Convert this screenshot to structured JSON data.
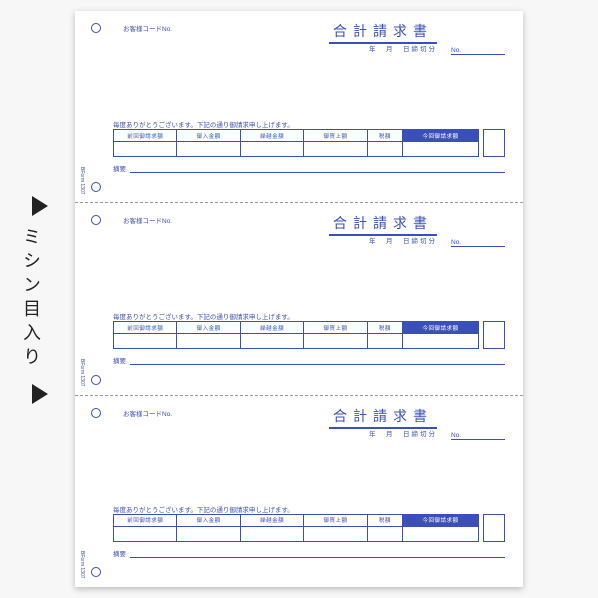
{
  "side_label": "ミシン目入り",
  "slip": {
    "code_label": "お客様コードNo.",
    "title": "合計請求書",
    "date_line": "年　月　日締切分",
    "no_label": "No.",
    "desc": "毎度ありがとうございます。下記の通り御請求申し上げます。",
    "note_label": "摘要",
    "form_no": "BForm 1307",
    "columns": [
      {
        "label": "前回御請求額",
        "inverted": false
      },
      {
        "label": "御入金額",
        "inverted": false
      },
      {
        "label": "繰越金額",
        "inverted": false
      },
      {
        "label": "御買上額",
        "inverted": false
      },
      {
        "label": "税額",
        "inverted": false,
        "narrow": true
      },
      {
        "label": "今回御請求額",
        "inverted": true
      }
    ]
  },
  "colors": {
    "accent": "#3a4fb8",
    "paper": "#ffffff",
    "bg": "#f7f7f7"
  }
}
